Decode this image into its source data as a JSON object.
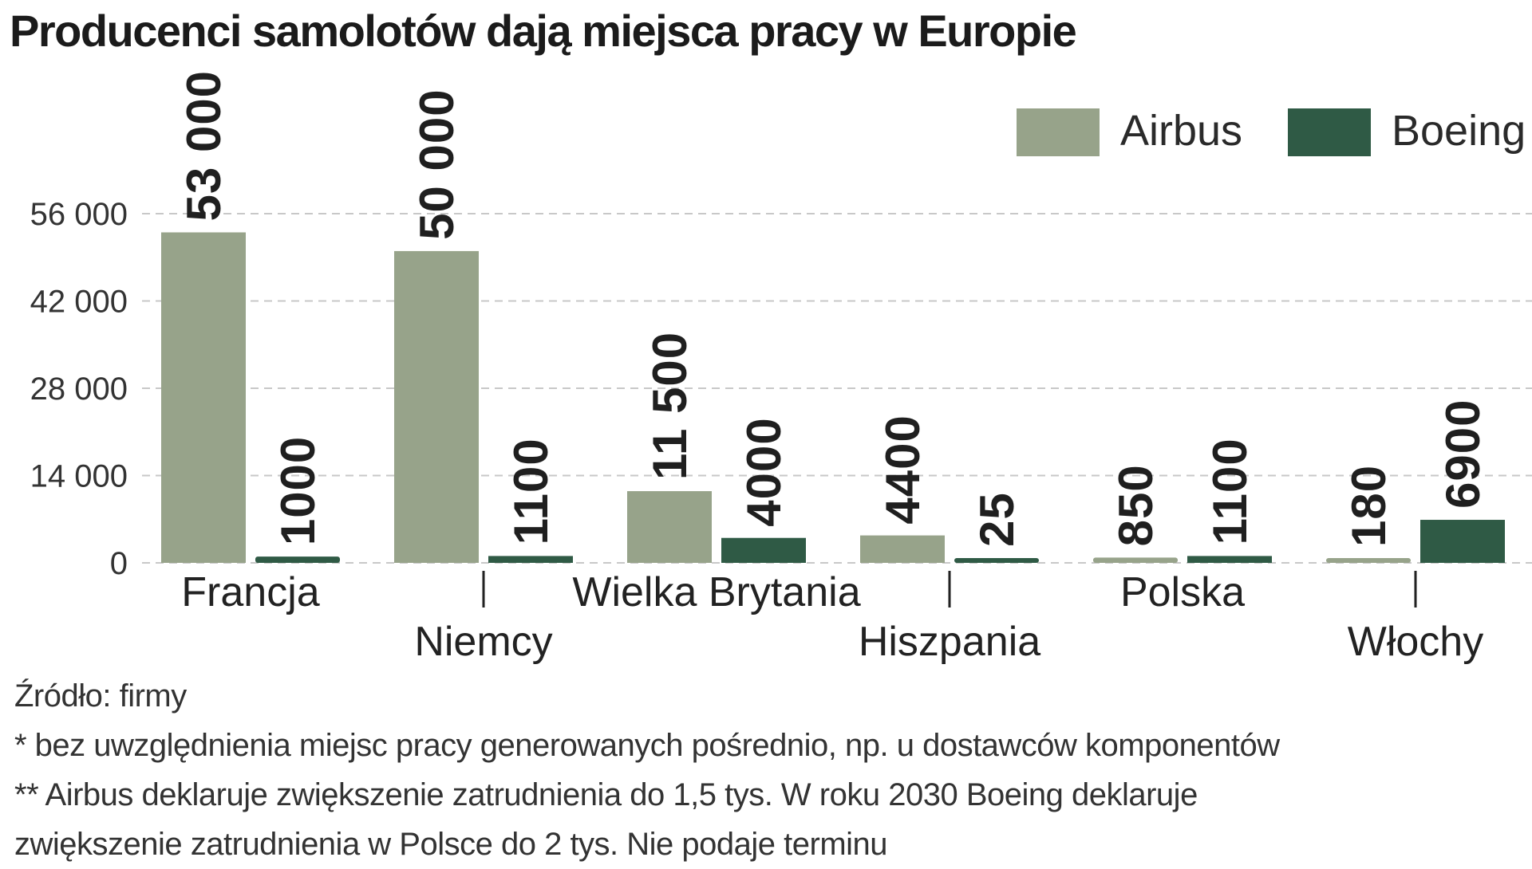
{
  "title": "Producenci samolotów dają miejsca pracy w Europie",
  "notes": {
    "source": "Źródło: firmy",
    "footnote1": "* bez uwzględnienia miejsc pracy generowanych pośrednio, np. u dostawców komponentów",
    "footnote2a": "** Airbus deklaruje zwiększenie zatrudnienia do 1,5 tys. W roku 2030 Boeing deklaruje",
    "footnote2b": "zwiększenie zatrudnienia w Polsce do 2 tys. Nie podaje terminu"
  },
  "colors": {
    "airbus": "#97a38a",
    "boeing": "#2f5a45",
    "grid": "#c8c8c8",
    "text": "#222222"
  },
  "chart_data": {
    "type": "bar",
    "title": "Producenci samolotów dają miejsca pracy w Europie",
    "categories": [
      "Francja",
      "Niemcy",
      "Wielka Brytania",
      "Hiszpania",
      "Polska",
      "Włochy"
    ],
    "series": [
      {
        "name": "Airbus",
        "values": [
          53000,
          50000,
          11500,
          4400,
          850,
          180
        ],
        "labels": [
          "53 000",
          "50 000",
          "11 500",
          "4400",
          "850",
          "180"
        ]
      },
      {
        "name": "Boeing",
        "values": [
          1000,
          1100,
          4000,
          25,
          1100,
          6900
        ],
        "labels": [
          "1000",
          "1100",
          "4000",
          "25",
          "1100",
          "6900"
        ]
      }
    ],
    "y_ticks": [
      0,
      14000,
      28000,
      42000,
      56000
    ],
    "y_tick_labels": [
      "0",
      "14 000",
      "28 000",
      "42 000",
      "56 000"
    ],
    "ylim": [
      0,
      56000
    ],
    "grid": "horizontal dashed",
    "legend_position": "top-right",
    "xlabel": "",
    "ylabel": ""
  }
}
